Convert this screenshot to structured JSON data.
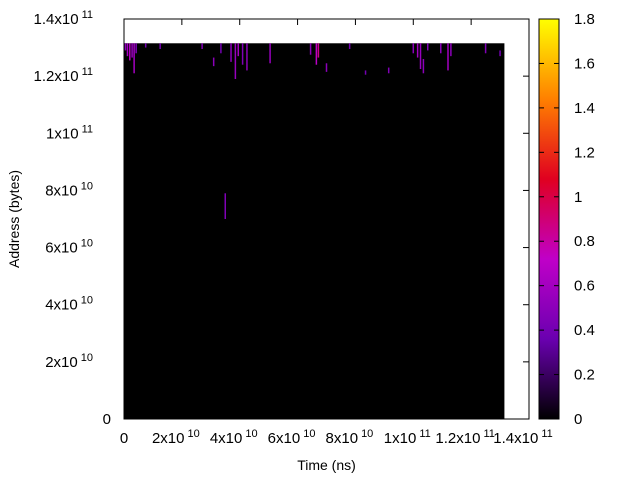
{
  "chart_data": {
    "type": "heatmap",
    "title": "",
    "xlabel": "Time (ns)",
    "ylabel": "Address (bytes)",
    "xlim": [
      0,
      140000000000
    ],
    "ylim": [
      0,
      140000000000
    ],
    "x_ticks": [
      {
        "value": 0,
        "mant": "0",
        "exp": ""
      },
      {
        "value": 20000000000,
        "mant": "2x10",
        "exp": "10"
      },
      {
        "value": 40000000000,
        "mant": "4x10",
        "exp": "10"
      },
      {
        "value": 60000000000,
        "mant": "6x10",
        "exp": "10"
      },
      {
        "value": 80000000000,
        "mant": "8x10",
        "exp": "10"
      },
      {
        "value": 100000000000,
        "mant": "1x10",
        "exp": "11"
      },
      {
        "value": 120000000000,
        "mant": "1.2x10",
        "exp": "11"
      },
      {
        "value": 140000000000,
        "mant": "1.4x10",
        "exp": "11"
      }
    ],
    "y_ticks": [
      {
        "value": 0,
        "mant": "0",
        "exp": ""
      },
      {
        "value": 20000000000,
        "mant": "2x10",
        "exp": "10"
      },
      {
        "value": 40000000000,
        "mant": "4x10",
        "exp": "10"
      },
      {
        "value": 60000000000,
        "mant": "6x10",
        "exp": "10"
      },
      {
        "value": 80000000000,
        "mant": "8x10",
        "exp": "10"
      },
      {
        "value": 100000000000,
        "mant": "1x10",
        "exp": "11"
      },
      {
        "value": 120000000000,
        "mant": "1.2x10",
        "exp": "11"
      },
      {
        "value": 140000000000,
        "mant": "1.4x10",
        "exp": "11"
      }
    ],
    "data_extent": {
      "x": [
        0,
        131500000000
      ],
      "y": [
        0,
        131500000000
      ]
    },
    "background_value": 0,
    "colorbar": {
      "range": [
        0,
        1.8
      ],
      "ticks": [
        "0",
        "0.2",
        "0.4",
        "0.6",
        "0.8",
        "1",
        "1.2",
        "1.4",
        "1.6",
        "1.8"
      ],
      "palette": [
        "#000000",
        "#6a00b0",
        "#c000c8",
        "#e00020",
        "#ff8000",
        "#ffff00"
      ]
    },
    "grid": false,
    "legend": "none",
    "highlights": [
      {
        "x": 500000000,
        "y_start": 129000000000,
        "y_end": 131500000000,
        "value": 0.5
      },
      {
        "x": 1200000000,
        "y_start": 127000000000,
        "y_end": 131500000000,
        "value": 0.6
      },
      {
        "x": 2000000000,
        "y_start": 125500000000,
        "y_end": 131500000000,
        "value": 0.7
      },
      {
        "x": 2800000000,
        "y_start": 126500000000,
        "y_end": 131500000000,
        "value": 0.55
      },
      {
        "x": 3500000000,
        "y_start": 121000000000,
        "y_end": 131500000000,
        "value": 0.6
      },
      {
        "x": 4200000000,
        "y_start": 128000000000,
        "y_end": 131500000000,
        "value": 0.45
      },
      {
        "x": 7500000000,
        "y_start": 130000000000,
        "y_end": 131500000000,
        "value": 0.4
      },
      {
        "x": 12500000000,
        "y_start": 129500000000,
        "y_end": 131500000000,
        "value": 0.4
      },
      {
        "x": 27000000000,
        "y_start": 129500000000,
        "y_end": 131500000000,
        "value": 0.45
      },
      {
        "x": 31000000000,
        "y_start": 123500000000,
        "y_end": 126500000000,
        "value": 0.5
      },
      {
        "x": 33500000000,
        "y_start": 128000000000,
        "y_end": 131500000000,
        "value": 0.4
      },
      {
        "x": 35000000000,
        "y_start": 70000000000,
        "y_end": 79000000000,
        "value": 0.45
      },
      {
        "x": 37000000000,
        "y_start": 125000000000,
        "y_end": 131500000000,
        "value": 0.5
      },
      {
        "x": 38500000000,
        "y_start": 119000000000,
        "y_end": 131500000000,
        "value": 0.55
      },
      {
        "x": 39500000000,
        "y_start": 127000000000,
        "y_end": 131500000000,
        "value": 0.6
      },
      {
        "x": 41000000000,
        "y_start": 124000000000,
        "y_end": 131500000000,
        "value": 0.45
      },
      {
        "x": 42500000000,
        "y_start": 122000000000,
        "y_end": 131500000000,
        "value": 0.5
      },
      {
        "x": 50500000000,
        "y_start": 124500000000,
        "y_end": 131500000000,
        "value": 0.55
      },
      {
        "x": 64500000000,
        "y_start": 127500000000,
        "y_end": 131500000000,
        "value": 0.5
      },
      {
        "x": 66500000000,
        "y_start": 124000000000,
        "y_end": 131500000000,
        "value": 0.7
      },
      {
        "x": 67200000000,
        "y_start": 126500000000,
        "y_end": 131500000000,
        "value": 0.85
      },
      {
        "x": 70000000000,
        "y_start": 121500000000,
        "y_end": 124500000000,
        "value": 0.5
      },
      {
        "x": 78000000000,
        "y_start": 129500000000,
        "y_end": 131500000000,
        "value": 0.4
      },
      {
        "x": 83500000000,
        "y_start": 120500000000,
        "y_end": 122000000000,
        "value": 0.4
      },
      {
        "x": 91500000000,
        "y_start": 121000000000,
        "y_end": 123000000000,
        "value": 0.45
      },
      {
        "x": 100000000000,
        "y_start": 128000000000,
        "y_end": 131500000000,
        "value": 0.5
      },
      {
        "x": 101500000000,
        "y_start": 126500000000,
        "y_end": 131500000000,
        "value": 0.6
      },
      {
        "x": 102500000000,
        "y_start": 122500000000,
        "y_end": 131500000000,
        "value": 0.55
      },
      {
        "x": 103500000000,
        "y_start": 121000000000,
        "y_end": 126000000000,
        "value": 0.5
      },
      {
        "x": 105000000000,
        "y_start": 129000000000,
        "y_end": 131500000000,
        "value": 0.45
      },
      {
        "x": 109500000000,
        "y_start": 128000000000,
        "y_end": 131500000000,
        "value": 0.5
      },
      {
        "x": 112000000000,
        "y_start": 122000000000,
        "y_end": 131500000000,
        "value": 0.6
      },
      {
        "x": 113000000000,
        "y_start": 127000000000,
        "y_end": 131500000000,
        "value": 0.5
      },
      {
        "x": 125000000000,
        "y_start": 128000000000,
        "y_end": 131500000000,
        "value": 0.45
      },
      {
        "x": 130000000000,
        "y_start": 127000000000,
        "y_end": 129000000000,
        "value": 0.4
      }
    ]
  }
}
